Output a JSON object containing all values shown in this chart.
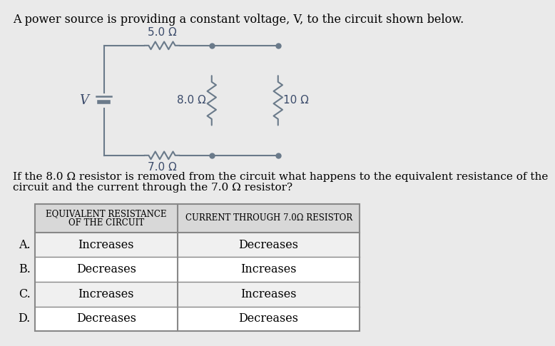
{
  "title_text": "A power source is providing a constant voltage, V, to the circuit shown below.",
  "question_line1": "If the 8.0 Ω resistor is removed from the circuit what happens to the equivalent resistance of the",
  "question_line2": "circuit and the current through the 7.0 Ω resistor?",
  "col1_header_line1": "Equivalent Resistance",
  "col1_header_line2": "of the Circuit",
  "col2_header": "Current through 7.0Ω Resistor",
  "rows": [
    {
      "label": "A.",
      "col1": "Increases",
      "col2": "Decreases"
    },
    {
      "label": "B.",
      "col1": "Decreases",
      "col2": "Increases"
    },
    {
      "label": "C.",
      "col1": "Increases",
      "col2": "Increases"
    },
    {
      "label": "D.",
      "col1": "Decreases",
      "col2": "Decreases"
    }
  ],
  "bg_color": "#eaeaea",
  "header_bg": "#d8d8d8",
  "row_bg_even": "#f0f0f0",
  "row_bg_odd": "#ffffff",
  "resistor_5": "5.0 Ω",
  "resistor_8": "8.0 Ω",
  "resistor_10": "10 Ω",
  "resistor_7": "7.0 Ω",
  "voltage_label": "V",
  "circuit_color": "#6a7a8a",
  "label_color": "#3a4a6a"
}
